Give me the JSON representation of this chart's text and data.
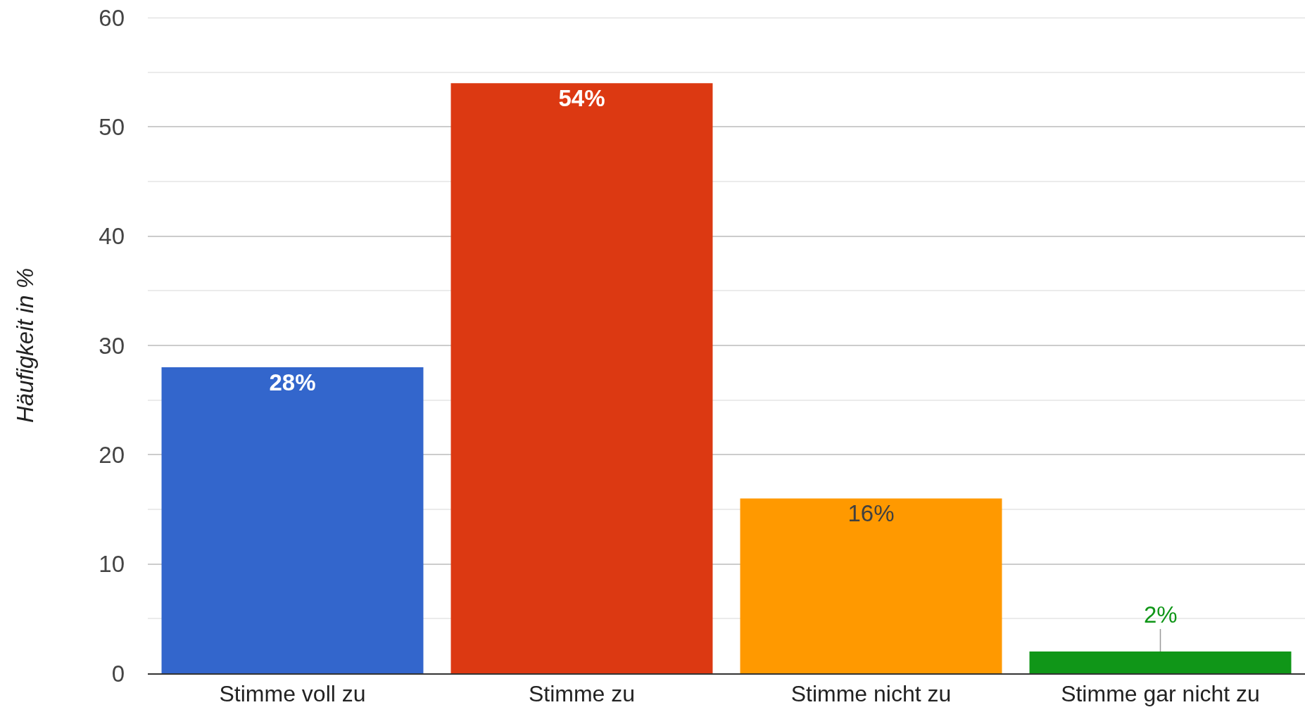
{
  "chart_data": {
    "type": "bar",
    "ylabel": "Häufigkeit in %",
    "categories": [
      "Stimme voll zu",
      "Stimme zu",
      "Stimme nicht zu",
      "Stimme gar nicht zu"
    ],
    "values": [
      28,
      54,
      16,
      2
    ],
    "colors": [
      "#3366cc",
      "#dc3912",
      "#ff9900",
      "#109618"
    ],
    "value_labels": [
      "28%",
      "54%",
      "16%",
      "2%"
    ],
    "ylim": [
      0,
      60
    ],
    "yticks": [
      0,
      {
        "value": 5,
        "label": null
      },
      10,
      {
        "value": 15,
        "label": null
      },
      20,
      {
        "value": 25,
        "label": null
      },
      30,
      {
        "value": 35,
        "label": null
      },
      40,
      {
        "value": 45,
        "label": null
      },
      50,
      {
        "value": 55,
        "label": null
      },
      60
    ],
    "grid": "y"
  }
}
